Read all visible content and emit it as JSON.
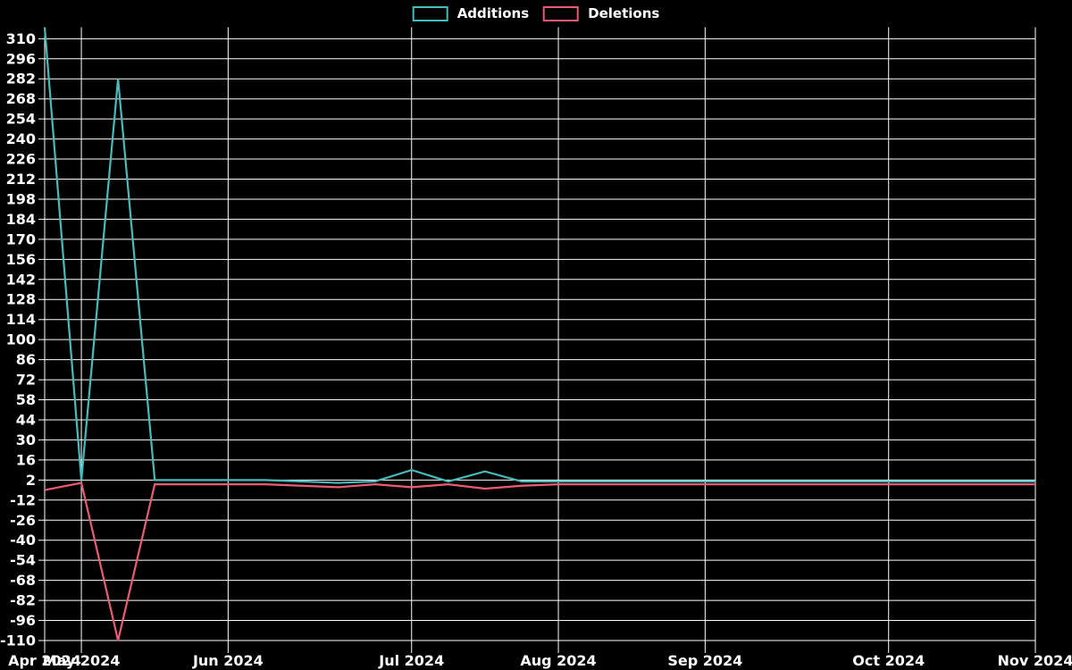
{
  "legend": {
    "items": [
      {
        "label": "Additions",
        "color": "#46bcbc"
      },
      {
        "label": "Deletions",
        "color": "#ec5b72"
      }
    ]
  },
  "chart_data": {
    "type": "line",
    "title": "",
    "background_color": "#000000",
    "grid": true,
    "grid_color": "#ffffff",
    "text_color": "#ffffff",
    "legend_position": "top-center",
    "x_unit": "week-index",
    "xlim": [
      0,
      27
    ],
    "ylim": [
      -115,
      318
    ],
    "y_ticks": [
      310,
      296,
      282,
      268,
      254,
      240,
      226,
      212,
      198,
      184,
      170,
      156,
      142,
      128,
      114,
      100,
      86,
      72,
      58,
      44,
      30,
      16,
      2,
      -12,
      -26,
      -40,
      -54,
      -68,
      -82,
      -96,
      -110
    ],
    "x_ticks": [
      {
        "pos": 0,
        "label": "Apr 2024"
      },
      {
        "pos": 1,
        "label": "May 2024"
      },
      {
        "pos": 5,
        "label": "Jun 2024"
      },
      {
        "pos": 10,
        "label": "Jul 2024"
      },
      {
        "pos": 14,
        "label": "Aug 2024"
      },
      {
        "pos": 18,
        "label": "Sep 2024"
      },
      {
        "pos": 23,
        "label": "Oct 2024"
      },
      {
        "pos": 27,
        "label": "Nov 2024"
      }
    ],
    "series": [
      {
        "name": "Additions",
        "color": "#46bcbc",
        "values": [
          318,
          2,
          282,
          2,
          2,
          2,
          2,
          1,
          0,
          1,
          9,
          1,
          8,
          1,
          1,
          1,
          1,
          1,
          1,
          1,
          1,
          1,
          1,
          1,
          1,
          1,
          1,
          1
        ]
      },
      {
        "name": "Deletions",
        "color": "#ec5b72",
        "values": [
          -5,
          0,
          -110,
          -1,
          -1,
          -1,
          -1,
          -2,
          -3,
          -1,
          -3,
          -1,
          -4,
          -2,
          -1,
          -1,
          -1,
          -1,
          -1,
          -1,
          -1,
          -1,
          -1,
          -1,
          -1,
          -1,
          -1,
          -1
        ]
      }
    ]
  }
}
